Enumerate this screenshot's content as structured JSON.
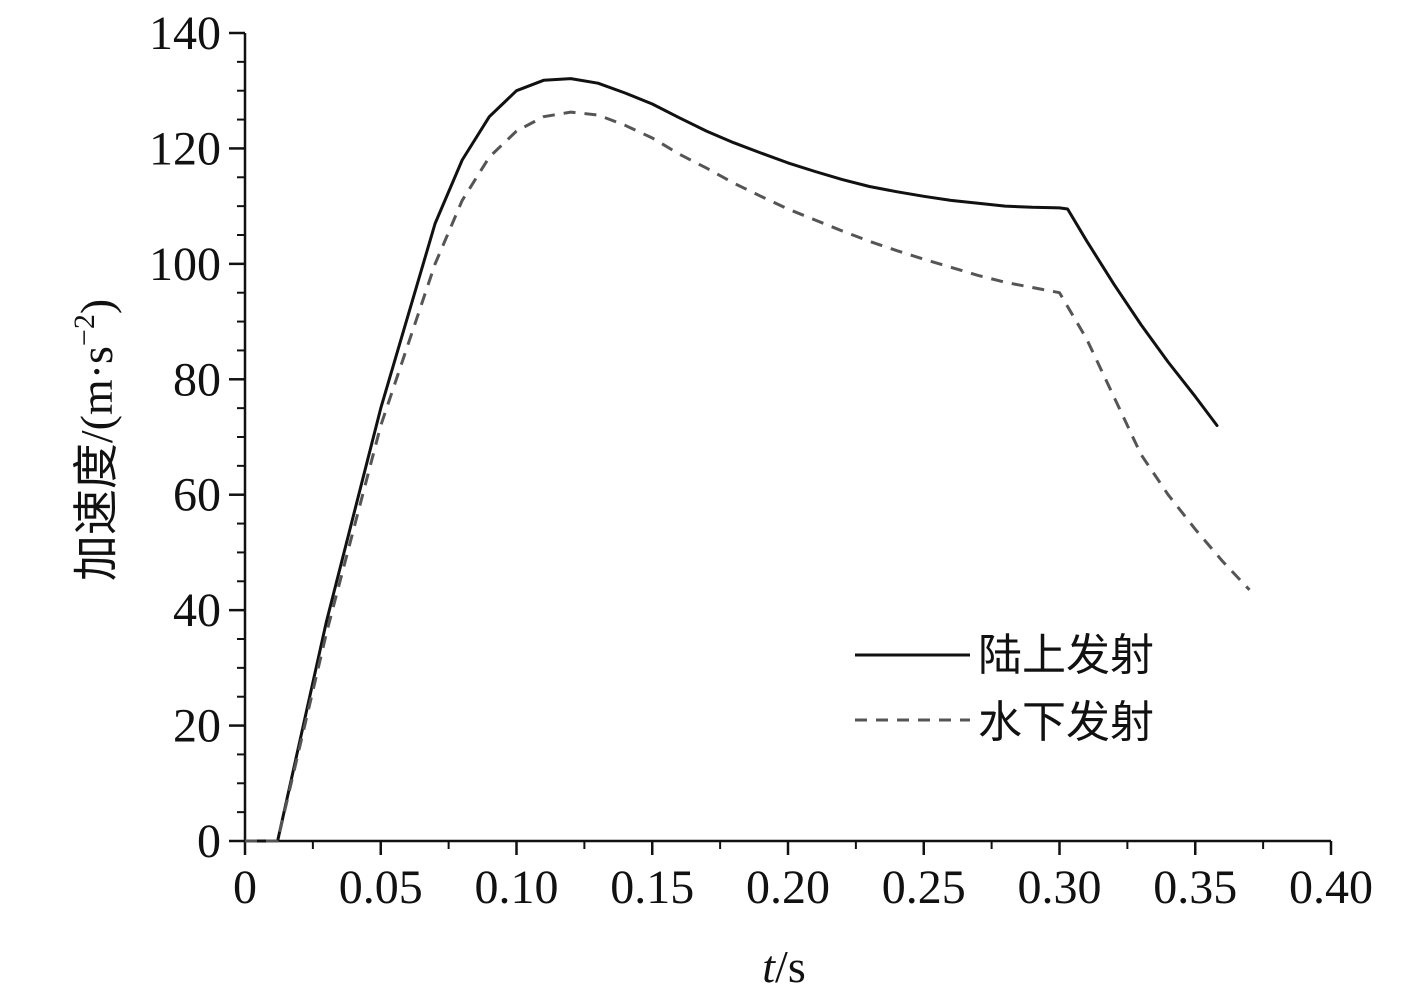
{
  "chart_data": {
    "type": "line",
    "title": "",
    "xlabel_italic": "t",
    "xlabel_unit": "/s",
    "ylabel": "加速度/(m·s",
    "ylabel_sup": "−2",
    "ylabel_close": ")",
    "xlim": [
      0,
      0.4
    ],
    "ylim": [
      0,
      140
    ],
    "x_ticks": [
      {
        "value": 0,
        "label": "0"
      },
      {
        "value": 0.05,
        "label": "0.05"
      },
      {
        "value": 0.1,
        "label": "0.10"
      },
      {
        "value": 0.15,
        "label": "0.15"
      },
      {
        "value": 0.2,
        "label": "0.20"
      },
      {
        "value": 0.25,
        "label": "0.25"
      },
      {
        "value": 0.3,
        "label": "0.30"
      },
      {
        "value": 0.35,
        "label": "0.35"
      },
      {
        "value": 0.4,
        "label": "0.40"
      }
    ],
    "y_ticks": [
      {
        "value": 0,
        "label": "0"
      },
      {
        "value": 20,
        "label": "20"
      },
      {
        "value": 40,
        "label": "40"
      },
      {
        "value": 60,
        "label": "60"
      },
      {
        "value": 80,
        "label": "80"
      },
      {
        "value": 100,
        "label": "100"
      },
      {
        "value": 120,
        "label": "120"
      },
      {
        "value": 140,
        "label": "140"
      }
    ],
    "grid": false,
    "legend_position": "lower-right",
    "series": [
      {
        "name": "陆上发射",
        "style": "solid",
        "color": "#111111",
        "points": [
          [
            0.012,
            0
          ],
          [
            0.03,
            38
          ],
          [
            0.05,
            75
          ],
          [
            0.07,
            107
          ],
          [
            0.08,
            118
          ],
          [
            0.09,
            125.5
          ],
          [
            0.1,
            130
          ],
          [
            0.11,
            131.8
          ],
          [
            0.12,
            132.1
          ],
          [
            0.13,
            131.3
          ],
          [
            0.14,
            129.6
          ],
          [
            0.15,
            127.7
          ],
          [
            0.16,
            125.3
          ],
          [
            0.17,
            123
          ],
          [
            0.18,
            121
          ],
          [
            0.19,
            119.2
          ],
          [
            0.2,
            117.5
          ],
          [
            0.21,
            116
          ],
          [
            0.22,
            114.6
          ],
          [
            0.23,
            113.4
          ],
          [
            0.24,
            112.5
          ],
          [
            0.25,
            111.7
          ],
          [
            0.26,
            111
          ],
          [
            0.27,
            110.5
          ],
          [
            0.28,
            110
          ],
          [
            0.29,
            109.8
          ],
          [
            0.3,
            109.7
          ],
          [
            0.303,
            109.5
          ],
          [
            0.31,
            104
          ],
          [
            0.32,
            96.5
          ],
          [
            0.33,
            89.5
          ],
          [
            0.34,
            83
          ],
          [
            0.35,
            77
          ],
          [
            0.358,
            72
          ]
        ]
      },
      {
        "name": "水下发射",
        "style": "dashed",
        "color": "#555555",
        "points": [
          [
            0.012,
            0
          ],
          [
            0.03,
            36
          ],
          [
            0.05,
            72
          ],
          [
            0.07,
            100
          ],
          [
            0.08,
            111
          ],
          [
            0.09,
            118.5
          ],
          [
            0.1,
            123
          ],
          [
            0.11,
            125.5
          ],
          [
            0.12,
            126.3
          ],
          [
            0.13,
            125.8
          ],
          [
            0.14,
            124
          ],
          [
            0.15,
            121.8
          ],
          [
            0.16,
            119
          ],
          [
            0.17,
            116.6
          ],
          [
            0.18,
            114
          ],
          [
            0.19,
            111.7
          ],
          [
            0.2,
            109.5
          ],
          [
            0.21,
            107.6
          ],
          [
            0.22,
            105.7
          ],
          [
            0.23,
            103.9
          ],
          [
            0.24,
            102.3
          ],
          [
            0.25,
            100.8
          ],
          [
            0.26,
            99.4
          ],
          [
            0.27,
            98
          ],
          [
            0.28,
            96.8
          ],
          [
            0.29,
            95.9
          ],
          [
            0.3,
            95
          ],
          [
            0.31,
            87
          ],
          [
            0.32,
            77
          ],
          [
            0.33,
            67
          ],
          [
            0.34,
            60
          ],
          [
            0.35,
            54
          ],
          [
            0.36,
            48.5
          ],
          [
            0.37,
            43.5
          ]
        ]
      }
    ]
  }
}
